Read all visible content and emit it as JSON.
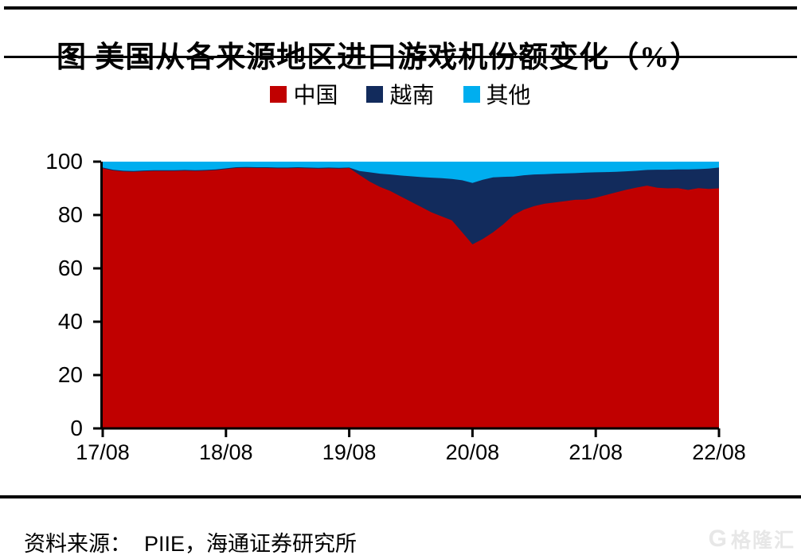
{
  "header": {
    "title": "图 美国从各来源地区进口游戏机份额变化（%）"
  },
  "chart_data": {
    "type": "area",
    "stacked": true,
    "unit": "%",
    "title": "美国从各来源地区进口游戏机份额变化（%）",
    "ylim": [
      0,
      100
    ],
    "y_ticks": [
      0,
      20,
      40,
      60,
      80,
      100
    ],
    "x_tick_labels": [
      "17/08",
      "18/08",
      "19/08",
      "20/08",
      "21/08",
      "22/08"
    ],
    "grid": false,
    "legend_position": "top-center",
    "x_months": [
      "2017-08",
      "2017-09",
      "2017-10",
      "2017-11",
      "2017-12",
      "2018-01",
      "2018-02",
      "2018-03",
      "2018-04",
      "2018-05",
      "2018-06",
      "2018-07",
      "2018-08",
      "2018-09",
      "2018-10",
      "2018-11",
      "2018-12",
      "2019-01",
      "2019-02",
      "2019-03",
      "2019-04",
      "2019-05",
      "2019-06",
      "2019-07",
      "2019-08",
      "2019-09",
      "2019-10",
      "2019-11",
      "2019-12",
      "2020-01",
      "2020-02",
      "2020-03",
      "2020-04",
      "2020-05",
      "2020-06",
      "2020-07",
      "2020-08",
      "2020-09",
      "2020-10",
      "2020-11",
      "2020-12",
      "2021-01",
      "2021-02",
      "2021-03",
      "2021-04",
      "2021-05",
      "2021-06",
      "2021-07",
      "2021-08",
      "2021-09",
      "2021-10",
      "2021-11",
      "2021-12",
      "2022-01",
      "2022-02",
      "2022-03",
      "2022-04",
      "2022-05",
      "2022-06",
      "2022-07",
      "2022-08"
    ],
    "series": [
      {
        "name": "中国",
        "color": "#C00000",
        "values": [
          97.5,
          96.7,
          96.3,
          96.2,
          96.4,
          96.5,
          96.5,
          96.5,
          96.6,
          96.5,
          96.6,
          96.8,
          97.2,
          97.6,
          97.7,
          97.6,
          97.6,
          97.5,
          97.5,
          97.6,
          97.5,
          97.4,
          97.5,
          97.4,
          97.6,
          95.0,
          92.5,
          90.5,
          89.0,
          87.0,
          85.0,
          83.0,
          81.0,
          79.5,
          78.0,
          73.5,
          69.0,
          71.0,
          73.5,
          76.5,
          80.0,
          82.0,
          83.3,
          84.2,
          84.7,
          85.2,
          85.7,
          85.8,
          86.5,
          87.5,
          88.5,
          89.5,
          90.3,
          91.0,
          90.2,
          90.0,
          90.1,
          89.4,
          90.1,
          89.8,
          90.0
        ]
      },
      {
        "name": "越南",
        "color": "#122B5C",
        "values": [
          0.3,
          0.3,
          0.3,
          0.3,
          0.3,
          0.3,
          0.3,
          0.3,
          0.3,
          0.3,
          0.3,
          0.3,
          0.3,
          0.3,
          0.3,
          0.3,
          0.3,
          0.3,
          0.3,
          0.3,
          0.3,
          0.3,
          0.3,
          0.3,
          0.2,
          1.5,
          3.5,
          5.0,
          6.2,
          7.8,
          9.5,
          11.2,
          13.0,
          14.3,
          15.5,
          19.5,
          23.0,
          22.2,
          20.6,
          17.8,
          14.4,
          12.9,
          11.9,
          11.1,
          10.8,
          10.4,
          10.0,
          10.1,
          9.5,
          8.6,
          7.7,
          6.9,
          6.3,
          5.9,
          6.8,
          7.0,
          7.0,
          7.7,
          7.1,
          7.6,
          7.8
        ]
      },
      {
        "name": "其他",
        "color": "#00AEEF",
        "values": [
          2.2,
          3.0,
          3.4,
          3.5,
          3.3,
          3.2,
          3.2,
          3.2,
          3.1,
          3.2,
          3.1,
          2.9,
          2.5,
          2.1,
          2.0,
          2.1,
          2.1,
          2.2,
          2.2,
          2.1,
          2.2,
          2.3,
          2.2,
          2.3,
          2.2,
          3.5,
          4.0,
          4.5,
          4.8,
          5.2,
          5.5,
          5.8,
          6.0,
          6.2,
          6.5,
          7.0,
          8.0,
          6.8,
          5.9,
          5.7,
          5.6,
          5.1,
          4.8,
          4.7,
          4.5,
          4.4,
          4.3,
          4.1,
          4.0,
          3.9,
          3.8,
          3.6,
          3.4,
          3.1,
          3.0,
          3.0,
          2.9,
          2.9,
          2.8,
          2.6,
          2.2
        ]
      }
    ]
  },
  "footer": {
    "source_label": "资料来源：",
    "source_value": "PIIE，海通证券研究所"
  },
  "watermark": {
    "logo": "G",
    "text": "格隆汇"
  }
}
